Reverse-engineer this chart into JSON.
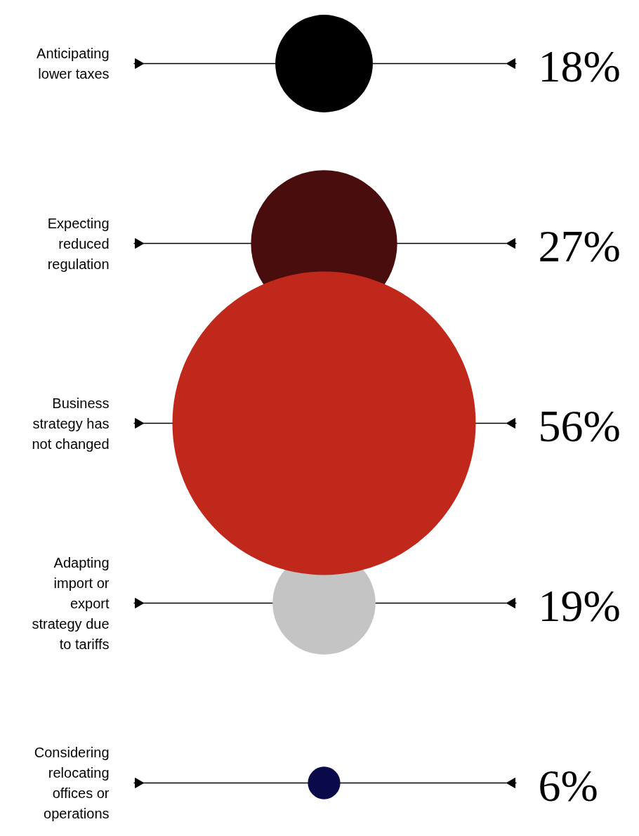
{
  "chart_data": {
    "type": "other",
    "categories": [
      "Anticipating\nlower taxes",
      "Expecting\nreduced\nregulation",
      "Business\nstrategy has\nnot changed",
      "Adapting\nimport or\nexport\nstrategy due\nto tariffs",
      "Considering\nrelocating\noffices or\noperations"
    ],
    "values": [
      18,
      27,
      56,
      19,
      6
    ],
    "value_labels": [
      "18%",
      "27%",
      "56%",
      "19%",
      "6%"
    ],
    "colors": [
      "#000000",
      "#4a0d0d",
      "#c1281c",
      "#c4c4c4",
      "#0a0a4a"
    ]
  }
}
